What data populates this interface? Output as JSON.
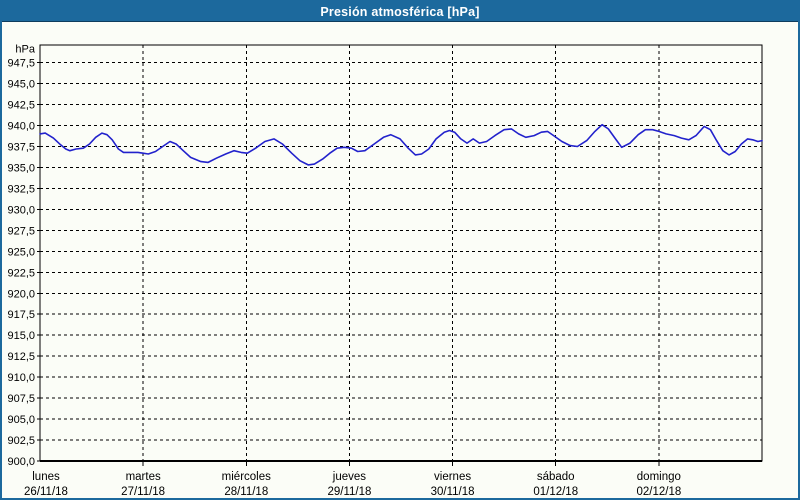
{
  "window": {
    "title": "Presión atmosférica [hPa]"
  },
  "colors": {
    "titlebar_bg": "#1C699D",
    "window_border": "#1C699D",
    "title_text": "#FFFFFF",
    "line": "#2222CC",
    "grid": "#000000",
    "plot_bg": "#FBFDF7",
    "label": "#000000"
  },
  "chart_data": {
    "type": "line",
    "title": "Presión atmosférica [hPa]",
    "unit_label": "hPa",
    "ylim": [
      900,
      949.6
    ],
    "y_tick_step": 2.5,
    "y_tick_values": [
      947.5,
      945.0,
      942.5,
      940.0,
      937.5,
      935.0,
      932.5,
      930.0,
      927.5,
      925.0,
      922.5,
      920.0,
      917.5,
      915.0,
      912.5,
      910.0,
      907.5,
      905.0,
      902.5,
      900.0
    ],
    "y_tick_labels": [
      "947,5",
      "945,0",
      "942,5",
      "940,0",
      "937,5",
      "935,0",
      "932,5",
      "930,0",
      "927,5",
      "925,0",
      "922,5",
      "920,0",
      "917,5",
      "915,0",
      "912,5",
      "910,0",
      "907,5",
      "905,0",
      "902,5",
      "900,0"
    ],
    "grid": "dashed",
    "legend": "none",
    "x_days": [
      {
        "name": "lunes",
        "date": "26/11/18"
      },
      {
        "name": "martes",
        "date": "27/11/18"
      },
      {
        "name": "miércoles",
        "date": "28/11/18"
      },
      {
        "name": "jueves",
        "date": "29/11/18"
      },
      {
        "name": "viernes",
        "date": "30/11/18"
      },
      {
        "name": "sábado",
        "date": "01/12/18"
      },
      {
        "name": "domingo",
        "date": "02/12/18"
      }
    ],
    "series": [
      {
        "name": "Presión atmosférica",
        "x_unit": "days_from_monday",
        "points": [
          [
            0.0,
            939.0
          ],
          [
            0.05,
            939.1
          ],
          [
            0.13,
            938.5
          ],
          [
            0.2,
            937.7
          ],
          [
            0.25,
            937.2
          ],
          [
            0.29,
            937.0
          ],
          [
            0.35,
            937.2
          ],
          [
            0.42,
            937.3
          ],
          [
            0.48,
            937.8
          ],
          [
            0.54,
            938.6
          ],
          [
            0.6,
            939.1
          ],
          [
            0.65,
            938.9
          ],
          [
            0.7,
            938.3
          ],
          [
            0.76,
            937.2
          ],
          [
            0.81,
            936.8
          ],
          [
            0.88,
            936.8
          ],
          [
            0.95,
            936.8
          ],
          [
            1.0,
            936.7
          ],
          [
            1.05,
            936.6
          ],
          [
            1.12,
            936.9
          ],
          [
            1.19,
            937.5
          ],
          [
            1.26,
            938.1
          ],
          [
            1.32,
            937.8
          ],
          [
            1.38,
            937.1
          ],
          [
            1.46,
            936.2
          ],
          [
            1.56,
            935.7
          ],
          [
            1.63,
            935.6
          ],
          [
            1.71,
            936.1
          ],
          [
            1.8,
            936.6
          ],
          [
            1.88,
            937.0
          ],
          [
            1.95,
            936.8
          ],
          [
            2.01,
            936.7
          ],
          [
            2.09,
            937.3
          ],
          [
            2.18,
            938.1
          ],
          [
            2.27,
            938.4
          ],
          [
            2.35,
            937.8
          ],
          [
            2.44,
            936.7
          ],
          [
            2.52,
            935.8
          ],
          [
            2.6,
            935.3
          ],
          [
            2.66,
            935.4
          ],
          [
            2.74,
            936.0
          ],
          [
            2.81,
            936.7
          ],
          [
            2.88,
            937.3
          ],
          [
            2.95,
            937.4
          ],
          [
            3.02,
            937.3
          ],
          [
            3.08,
            936.9
          ],
          [
            3.15,
            937.0
          ],
          [
            3.24,
            937.8
          ],
          [
            3.33,
            938.6
          ],
          [
            3.4,
            938.9
          ],
          [
            3.49,
            938.4
          ],
          [
            3.57,
            937.3
          ],
          [
            3.64,
            936.5
          ],
          [
            3.7,
            936.6
          ],
          [
            3.77,
            937.2
          ],
          [
            3.84,
            938.4
          ],
          [
            3.92,
            939.2
          ],
          [
            3.97,
            939.4
          ],
          [
            4.02,
            939.2
          ],
          [
            4.08,
            938.4
          ],
          [
            4.14,
            937.9
          ],
          [
            4.2,
            938.4
          ],
          [
            4.26,
            937.9
          ],
          [
            4.33,
            938.1
          ],
          [
            4.41,
            938.8
          ],
          [
            4.5,
            939.5
          ],
          [
            4.57,
            939.6
          ],
          [
            4.64,
            939.0
          ],
          [
            4.71,
            938.6
          ],
          [
            4.79,
            938.8
          ],
          [
            4.86,
            939.2
          ],
          [
            4.92,
            939.3
          ],
          [
            4.99,
            938.7
          ],
          [
            5.06,
            938.1
          ],
          [
            5.14,
            937.6
          ],
          [
            5.21,
            937.5
          ],
          [
            5.3,
            938.2
          ],
          [
            5.38,
            939.3
          ],
          [
            5.45,
            940.1
          ],
          [
            5.51,
            939.6
          ],
          [
            5.58,
            938.4
          ],
          [
            5.64,
            937.4
          ],
          [
            5.72,
            937.9
          ],
          [
            5.8,
            938.9
          ],
          [
            5.87,
            939.5
          ],
          [
            5.94,
            939.5
          ],
          [
            6.0,
            939.3
          ],
          [
            6.07,
            939.0
          ],
          [
            6.15,
            938.8
          ],
          [
            6.22,
            938.5
          ],
          [
            6.29,
            938.3
          ],
          [
            6.36,
            938.8
          ],
          [
            6.44,
            939.9
          ],
          [
            6.5,
            939.5
          ],
          [
            6.56,
            938.2
          ],
          [
            6.62,
            937.0
          ],
          [
            6.68,
            936.5
          ],
          [
            6.74,
            936.9
          ],
          [
            6.8,
            937.8
          ],
          [
            6.86,
            938.4
          ],
          [
            6.91,
            938.3
          ],
          [
            6.96,
            938.1
          ],
          [
            7.0,
            938.2
          ]
        ]
      }
    ]
  }
}
